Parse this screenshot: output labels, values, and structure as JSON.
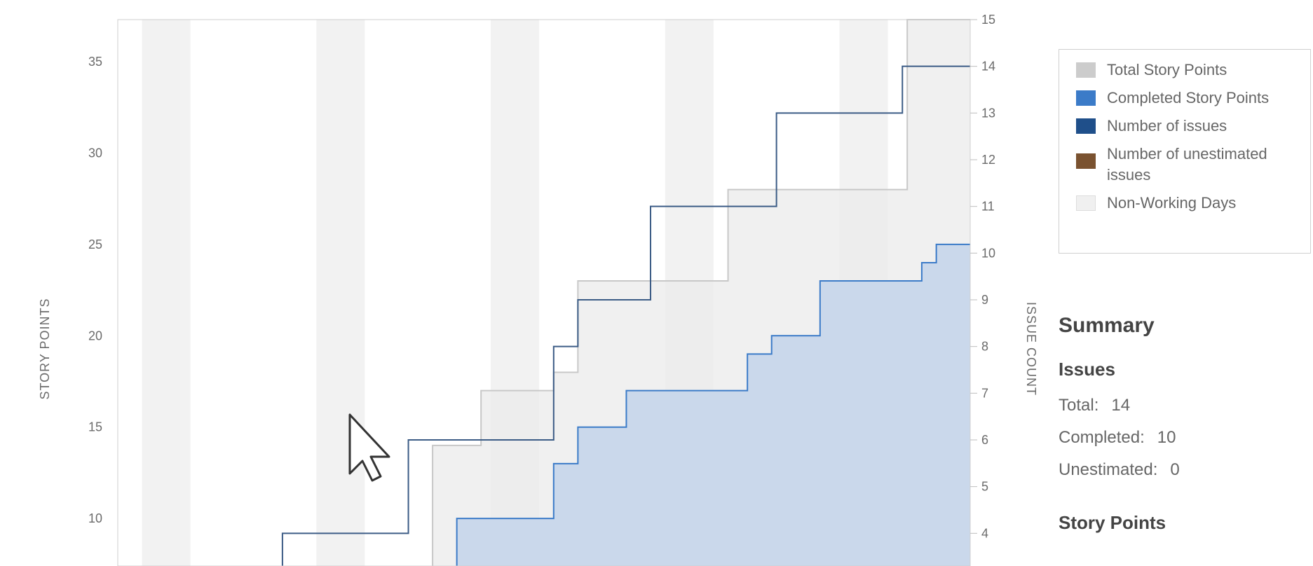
{
  "chart_data": {
    "type": "line",
    "xlabel": "",
    "y_left_label": "STORY POINTS",
    "y_right_label": "ISSUE COUNT",
    "y_left_ticks": [
      10,
      15,
      20,
      25,
      30,
      35
    ],
    "y_right_ticks": [
      4,
      5,
      6,
      7,
      8,
      9,
      10,
      11,
      12,
      13,
      14,
      15
    ],
    "y_left_range": [
      7.4,
      37.3
    ],
    "y_right_range": [
      3.3,
      15.0
    ],
    "x_range": [
      0,
      17.6
    ],
    "grid": false,
    "legend_position": "right",
    "non_working_days": [
      [
        0.5,
        1.5
      ],
      [
        4.1,
        5.1
      ],
      [
        7.7,
        8.7
      ],
      [
        11.3,
        12.3
      ],
      [
        14.9,
        15.9
      ]
    ],
    "series": [
      {
        "name": "Total Story Points",
        "axis": "left",
        "color": "#c8c8c8",
        "steps": [
          {
            "x": 6.5,
            "y": 14
          },
          {
            "x": 7.5,
            "y": 17
          },
          {
            "x": 9.0,
            "y": 18
          },
          {
            "x": 9.5,
            "y": 23
          },
          {
            "x": 12.6,
            "y": 28
          },
          {
            "x": 16.3,
            "y": 37.3
          }
        ],
        "end_x": 17.6
      },
      {
        "name": "Completed Story Points",
        "axis": "left",
        "color": "#3b7bc8",
        "steps": [
          {
            "x": 7.0,
            "y": 10
          },
          {
            "x": 9.0,
            "y": 13
          },
          {
            "x": 9.5,
            "y": 15
          },
          {
            "x": 10.5,
            "y": 17
          },
          {
            "x": 13.0,
            "y": 19
          },
          {
            "x": 13.5,
            "y": 20
          },
          {
            "x": 14.5,
            "y": 23
          },
          {
            "x": 16.6,
            "y": 24
          },
          {
            "x": 16.9,
            "y": 25
          }
        ],
        "end_x": 17.6
      },
      {
        "name": "Number of issues",
        "axis": "right",
        "color": "#1f4f8a",
        "steps": [
          {
            "x": 3.4,
            "y": 4
          },
          {
            "x": 6.0,
            "y": 6
          },
          {
            "x": 9.0,
            "y": 8
          },
          {
            "x": 9.5,
            "y": 9
          },
          {
            "x": 11.0,
            "y": 11
          },
          {
            "x": 13.6,
            "y": 13
          },
          {
            "x": 16.2,
            "y": 14
          }
        ],
        "end_x": 17.6
      },
      {
        "name": "Number of unestimated issues",
        "axis": "right",
        "color": "#7a5230",
        "steps": [],
        "end_x": 17.6
      }
    ]
  },
  "legend": {
    "items": [
      {
        "label": "Total Story Points",
        "color": "#cccccc"
      },
      {
        "label": "Completed Story Points",
        "color": "#3b7bc8"
      },
      {
        "label": "Number of issues",
        "color": "#1f4f8a"
      },
      {
        "label": "Number of unestimated issues",
        "color": "#7a5230"
      },
      {
        "label": "Non-Working Days",
        "color": "#f0f0f0"
      }
    ]
  },
  "summary": {
    "title": "Summary",
    "issues_heading": "Issues",
    "total_label": "Total:",
    "total_value": "14",
    "completed_label": "Completed:",
    "completed_value": "10",
    "unestimated_label": "Unestimated:",
    "unestimated_value": "0",
    "points_heading": "Story Points"
  }
}
